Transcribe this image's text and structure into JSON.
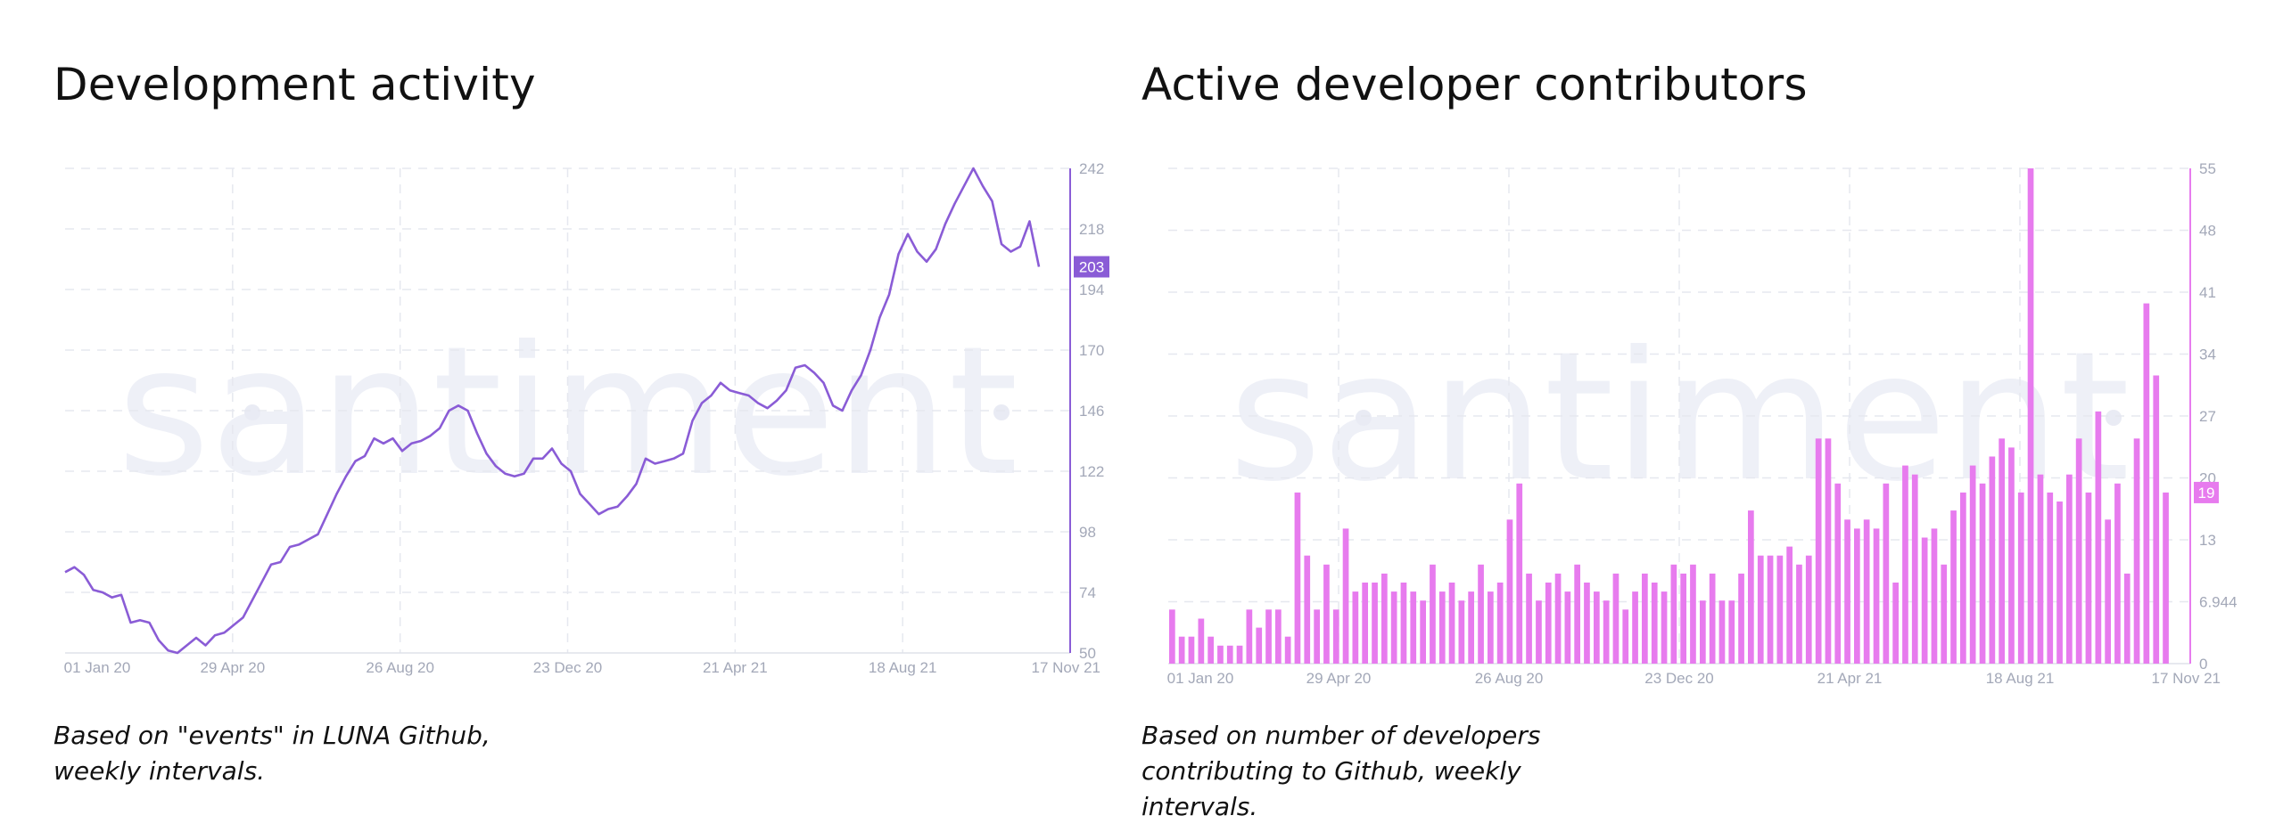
{
  "watermark": "santiment",
  "left": {
    "title": "Development activity",
    "caption": "Based on \"events\" in LUNA Github, weekly intervals.",
    "color": "#8a5cd6",
    "badge_color": "#8a5cd6"
  },
  "right": {
    "title": "Active developer contributors",
    "caption": "Based on number of developers contributing to Github, weekly intervals.",
    "color": "#e77bee",
    "badge_color": "#e77bee"
  },
  "chart_data": [
    {
      "type": "line",
      "title": "Development activity",
      "x_tick_labels": [
        "01 Jan 20",
        "29 Apr 20",
        "26 Aug 20",
        "23 Dec 20",
        "21 Apr 21",
        "18 Aug 21",
        "17 Nov 21"
      ],
      "y_tick_labels": [
        "50",
        "74",
        "98",
        "122",
        "146",
        "170",
        "194",
        "218",
        "242"
      ],
      "ylim": [
        50,
        242
      ],
      "grid": true,
      "last_value_label": "203",
      "series": [
        {
          "values": [
            82,
            84,
            81,
            75,
            74,
            72,
            73,
            62,
            63,
            62,
            55,
            51,
            50,
            53,
            56,
            53,
            57,
            58,
            61,
            64,
            71,
            78,
            85,
            86,
            92,
            93,
            95,
            97,
            105,
            113,
            120,
            126,
            128,
            135,
            133,
            135,
            130,
            133,
            134,
            136,
            139,
            146,
            148,
            146,
            137,
            129,
            124,
            121,
            120,
            121,
            127,
            127,
            131,
            125,
            122,
            113,
            109,
            105,
            107,
            108,
            112,
            117,
            127,
            125,
            126,
            127,
            129,
            142,
            149,
            152,
            157,
            154,
            153,
            152,
            149,
            147,
            150,
            154,
            163,
            164,
            161,
            157,
            148,
            146,
            154,
            160,
            170,
            183,
            192,
            208,
            216,
            209,
            205,
            210,
            220,
            228,
            235,
            242,
            235,
            229,
            212,
            209,
            211,
            221,
            203
          ]
        }
      ]
    },
    {
      "type": "bar",
      "title": "Active developer contributors",
      "x_tick_labels": [
        "01 Jan 20",
        "29 Apr 20",
        "26 Aug 20",
        "23 Dec 20",
        "21 Apr 21",
        "18 Aug 21",
        "17 Nov 21"
      ],
      "y_tick_labels": [
        "0",
        "6.944",
        "13",
        "20",
        "27",
        "34",
        "41",
        "48",
        "55"
      ],
      "ylim": [
        0,
        55
      ],
      "grid": true,
      "last_value_label": "19",
      "series": [
        {
          "values": [
            6,
            3,
            3,
            5,
            3,
            2,
            2,
            2,
            6,
            4,
            6,
            6,
            3,
            19,
            12,
            6,
            11,
            6,
            15,
            8,
            9,
            9,
            10,
            8,
            9,
            8,
            7,
            11,
            8,
            9,
            7,
            8,
            11,
            8,
            9,
            16,
            20,
            10,
            7,
            9,
            10,
            8,
            11,
            9,
            8,
            7,
            10,
            6,
            8,
            10,
            9,
            8,
            11,
            10,
            11,
            7,
            10,
            7,
            7,
            10,
            17,
            12,
            12,
            12,
            13,
            11,
            12,
            25,
            25,
            20,
            16,
            15,
            16,
            15,
            20,
            9,
            22,
            21,
            14,
            15,
            11,
            17,
            19,
            22,
            20,
            23,
            25,
            24,
            19,
            55,
            21,
            19,
            18,
            21,
            25,
            19,
            28,
            16,
            20,
            10,
            25,
            40,
            32,
            19
          ]
        }
      ]
    }
  ]
}
